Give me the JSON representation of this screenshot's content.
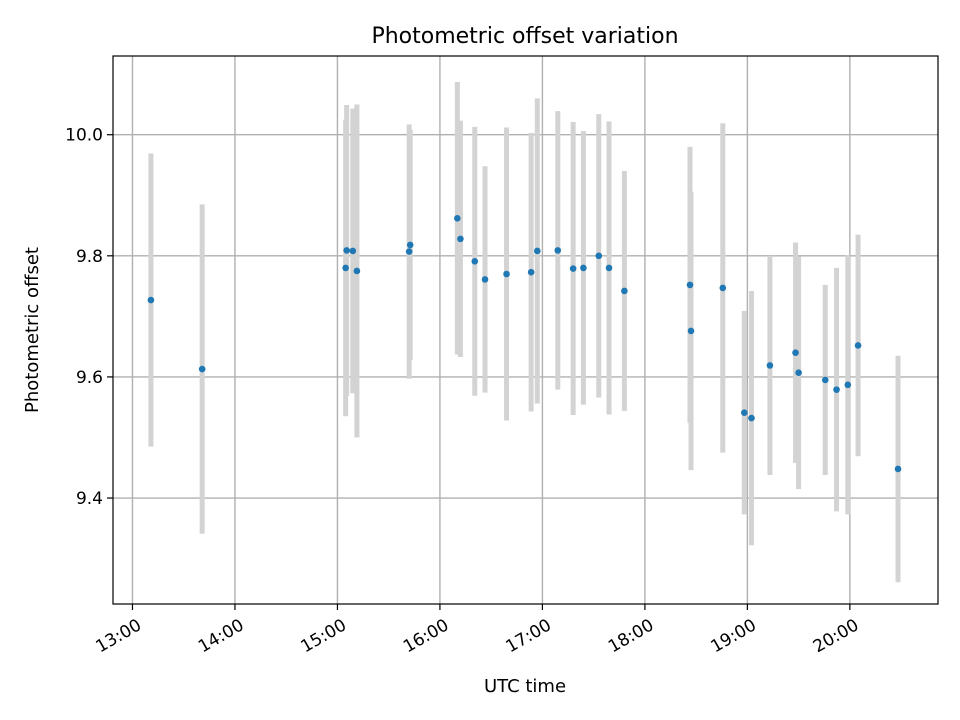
{
  "chart_data": {
    "type": "scatter",
    "title": "Photometric offset variation",
    "xlabel": "UTC time",
    "ylabel": "Photometric offset",
    "x_axis": "time (UTC, decimal hours)",
    "xlim": [
      12.81,
      20.86
    ],
    "ylim": [
      9.225,
      10.13
    ],
    "grid": true,
    "legend": "none",
    "x_ticks": [
      13,
      14,
      15,
      16,
      17,
      18,
      19,
      20
    ],
    "x_tick_labels": [
      "13:00",
      "14:00",
      "15:00",
      "16:00",
      "17:00",
      "18:00",
      "19:00",
      "20:00"
    ],
    "y_ticks": [
      9.4,
      9.6,
      9.8,
      10.0
    ],
    "y_tick_labels": [
      "9.4",
      "9.6",
      "9.8",
      "10.0"
    ],
    "marker_color": "#1f77b4",
    "errorbar_color": "#d3d3d3",
    "points": [
      {
        "x": 13.18,
        "y": 9.727,
        "err": 0.242
      },
      {
        "x": 13.68,
        "y": 9.613,
        "err": 0.272
      },
      {
        "x": 15.08,
        "y": 9.78,
        "err": 0.245
      },
      {
        "x": 15.09,
        "y": 9.809,
        "err": 0.24
      },
      {
        "x": 15.15,
        "y": 9.808,
        "err": 0.235
      },
      {
        "x": 15.19,
        "y": 9.775,
        "err": 0.275
      },
      {
        "x": 15.7,
        "y": 9.807,
        "err": 0.21
      },
      {
        "x": 15.71,
        "y": 9.818,
        "err": 0.19
      },
      {
        "x": 16.17,
        "y": 9.862,
        "err": 0.225
      },
      {
        "x": 16.2,
        "y": 9.828,
        "err": 0.195
      },
      {
        "x": 16.34,
        "y": 9.791,
        "err": 0.222
      },
      {
        "x": 16.44,
        "y": 9.761,
        "err": 0.187
      },
      {
        "x": 16.65,
        "y": 9.77,
        "err": 0.242
      },
      {
        "x": 16.89,
        "y": 9.773,
        "err": 0.23
      },
      {
        "x": 16.95,
        "y": 9.808,
        "err": 0.252
      },
      {
        "x": 17.15,
        "y": 9.809,
        "err": 0.23
      },
      {
        "x": 17.3,
        "y": 9.779,
        "err": 0.242
      },
      {
        "x": 17.4,
        "y": 9.78,
        "err": 0.226
      },
      {
        "x": 17.55,
        "y": 9.8,
        "err": 0.234
      },
      {
        "x": 17.65,
        "y": 9.78,
        "err": 0.242
      },
      {
        "x": 17.8,
        "y": 9.742,
        "err": 0.198
      },
      {
        "x": 18.44,
        "y": 9.752,
        "err": 0.228
      },
      {
        "x": 18.45,
        "y": 9.676,
        "err": 0.23
      },
      {
        "x": 18.76,
        "y": 9.747,
        "err": 0.272
      },
      {
        "x": 18.97,
        "y": 9.541,
        "err": 0.168
      },
      {
        "x": 19.04,
        "y": 9.532,
        "err": 0.21
      },
      {
        "x": 19.22,
        "y": 9.619,
        "err": 0.181
      },
      {
        "x": 19.47,
        "y": 9.64,
        "err": 0.182
      },
      {
        "x": 19.5,
        "y": 9.607,
        "err": 0.192
      },
      {
        "x": 19.76,
        "y": 9.595,
        "err": 0.157
      },
      {
        "x": 19.87,
        "y": 9.579,
        "err": 0.201
      },
      {
        "x": 19.98,
        "y": 9.587,
        "err": 0.214
      },
      {
        "x": 20.08,
        "y": 9.652,
        "err": 0.183
      },
      {
        "x": 20.47,
        "y": 9.448,
        "err": 0.187
      }
    ]
  }
}
